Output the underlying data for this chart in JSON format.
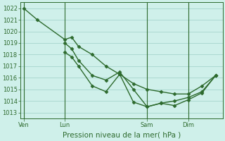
{
  "bg_color": "#cff0ea",
  "grid_color": "#9ecfc7",
  "line_color": "#2d6a2d",
  "marker_color": "#2d6a2d",
  "xlabel_text": "Pression niveau de la mer( hPa )",
  "ylim": [
    1012.5,
    1022.5
  ],
  "yticks": [
    1013,
    1014,
    1015,
    1016,
    1017,
    1018,
    1019,
    1020,
    1021,
    1022
  ],
  "xtick_labels": [
    "Ven",
    "Lun",
    "Sam",
    "Dim"
  ],
  "xtick_positions": [
    0,
    24,
    72,
    96
  ],
  "xlim": [
    -2,
    116
  ],
  "series": [
    {
      "x": [
        0,
        8,
        24,
        28,
        32,
        40,
        48,
        56,
        64,
        72,
        80,
        88,
        96,
        104,
        112
      ],
      "y": [
        1022,
        1021,
        1019.3,
        1019.5,
        1018.7,
        1018.0,
        1017.0,
        1016.3,
        1015.5,
        1015.0,
        1014.8,
        1014.6,
        1014.6,
        1015.3,
        1016.2
      ],
      "marker": "D",
      "markersize": 2.5,
      "linewidth": 1.0
    },
    {
      "x": [
        24,
        28,
        32,
        40,
        48,
        56,
        64,
        72,
        80,
        88,
        96,
        104,
        112
      ],
      "y": [
        1019.0,
        1018.5,
        1017.5,
        1016.2,
        1015.8,
        1016.5,
        1015.0,
        1013.5,
        1013.8,
        1013.6,
        1014.1,
        1014.7,
        1016.2
      ],
      "marker": "D",
      "markersize": 2.5,
      "linewidth": 1.0
    },
    {
      "x": [
        24,
        28,
        32,
        40,
        48,
        56,
        64,
        72,
        80,
        88,
        96,
        104,
        112
      ],
      "y": [
        1018.2,
        1017.8,
        1017.0,
        1015.3,
        1014.8,
        1016.3,
        1013.9,
        1013.5,
        1013.8,
        1014.0,
        1014.3,
        1014.8,
        1016.2
      ],
      "marker": "D",
      "markersize": 2.5,
      "linewidth": 1.0
    }
  ],
  "vlines": [
    0,
    24,
    72,
    96
  ],
  "tick_fontsize": 6,
  "xlabel_fontsize": 7.5
}
